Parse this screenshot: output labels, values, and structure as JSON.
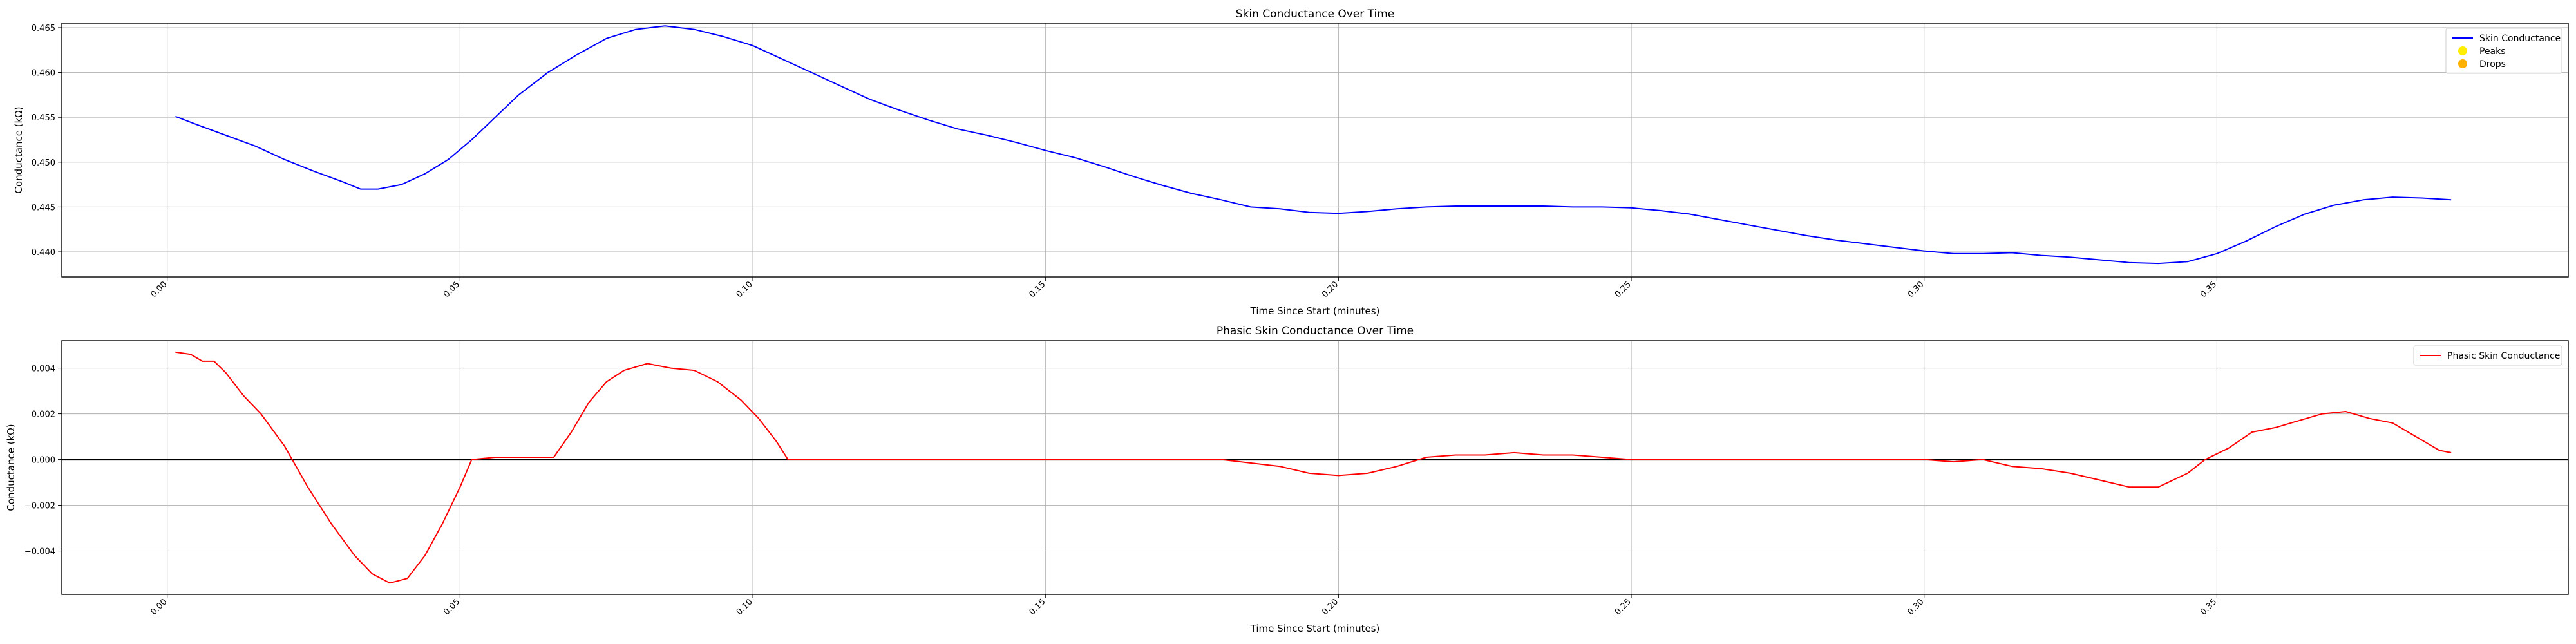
{
  "chart_data": [
    {
      "type": "line",
      "title": "Skin Conductance Over Time",
      "xlabel": "Time Since Start (minutes)",
      "ylabel": "Conductance (kΩ)",
      "xlim": [
        -0.018,
        0.41
      ],
      "ylim": [
        0.4372,
        0.4655
      ],
      "xticks": [
        0.0,
        0.05,
        0.1,
        0.15,
        0.2,
        0.25,
        0.3,
        0.35
      ],
      "xtick_labels": [
        "0.00",
        "0.05",
        "0.10",
        "0.15",
        "0.20",
        "0.25",
        "0.30",
        "0.35"
      ],
      "yticks": [
        0.44,
        0.445,
        0.45,
        0.455,
        0.46,
        0.465
      ],
      "ytick_labels": [
        "0.440",
        "0.445",
        "0.450",
        "0.455",
        "0.460",
        "0.465"
      ],
      "grid": true,
      "legend_position": "top-right",
      "legend": [
        {
          "label": "Skin Conductance",
          "marker": "line",
          "color": "#0000ff"
        },
        {
          "label": "Peaks",
          "marker": "dot",
          "color": "#ffee00"
        },
        {
          "label": "Drops",
          "marker": "dot",
          "color": "#ffb000"
        }
      ],
      "series": [
        {
          "name": "Skin Conductance",
          "color": "#0000ff",
          "x": [
            0.0014,
            0.005,
            0.01,
            0.015,
            0.02,
            0.025,
            0.03,
            0.033,
            0.036,
            0.04,
            0.044,
            0.048,
            0.052,
            0.056,
            0.06,
            0.065,
            0.07,
            0.075,
            0.08,
            0.085,
            0.09,
            0.095,
            0.1,
            0.105,
            0.11,
            0.115,
            0.12,
            0.125,
            0.13,
            0.135,
            0.14,
            0.145,
            0.15,
            0.155,
            0.16,
            0.165,
            0.17,
            0.175,
            0.18,
            0.185,
            0.19,
            0.195,
            0.2,
            0.205,
            0.21,
            0.215,
            0.22,
            0.225,
            0.23,
            0.235,
            0.24,
            0.245,
            0.25,
            0.255,
            0.26,
            0.265,
            0.27,
            0.275,
            0.28,
            0.285,
            0.29,
            0.295,
            0.3,
            0.305,
            0.31,
            0.315,
            0.32,
            0.325,
            0.33,
            0.335,
            0.34,
            0.345,
            0.35,
            0.355,
            0.36,
            0.365,
            0.37,
            0.375,
            0.38,
            0.385,
            0.39
          ],
          "y": [
            0.4551,
            0.4542,
            0.453,
            0.4518,
            0.4503,
            0.449,
            0.4478,
            0.447,
            0.447,
            0.4475,
            0.4487,
            0.4503,
            0.4525,
            0.455,
            0.4575,
            0.46,
            0.462,
            0.4638,
            0.4648,
            0.4652,
            0.4648,
            0.464,
            0.463,
            0.4615,
            0.46,
            0.4585,
            0.457,
            0.4558,
            0.4547,
            0.4537,
            0.453,
            0.4522,
            0.4513,
            0.4505,
            0.4495,
            0.4484,
            0.4474,
            0.4465,
            0.4458,
            0.445,
            0.4448,
            0.4444,
            0.4443,
            0.4445,
            0.4448,
            0.445,
            0.4451,
            0.4451,
            0.4451,
            0.4451,
            0.445,
            0.445,
            0.4449,
            0.4446,
            0.4442,
            0.4436,
            0.443,
            0.4424,
            0.4418,
            0.4413,
            0.4409,
            0.4405,
            0.4401,
            0.4398,
            0.4398,
            0.4399,
            0.4396,
            0.4394,
            0.4391,
            0.4388,
            0.4387,
            0.4389,
            0.4398,
            0.4412,
            0.4428,
            0.4442,
            0.4452,
            0.4458,
            0.4461,
            0.446,
            0.4458
          ]
        }
      ]
    },
    {
      "type": "line",
      "title": "Phasic Skin Conductance Over Time",
      "xlabel": "Time Since Start (minutes)",
      "ylabel": "Conductance (kΩ)",
      "xlim": [
        -0.018,
        0.41
      ],
      "ylim": [
        -0.0059,
        0.0052
      ],
      "xticks": [
        0.0,
        0.05,
        0.1,
        0.15,
        0.2,
        0.25,
        0.3,
        0.35
      ],
      "xtick_labels": [
        "0.00",
        "0.05",
        "0.10",
        "0.15",
        "0.20",
        "0.25",
        "0.30",
        "0.35"
      ],
      "yticks": [
        -0.004,
        -0.002,
        0.0,
        0.002,
        0.004
      ],
      "ytick_labels": [
        "−0.004",
        "−0.002",
        "0.000",
        "0.002",
        "0.004"
      ],
      "grid": true,
      "hline_y": 0,
      "legend_position": "top-right",
      "legend": [
        {
          "label": "Phasic Skin Conductance",
          "marker": "line",
          "color": "#ff0000"
        }
      ],
      "series": [
        {
          "name": "Phasic Skin Conductance",
          "color": "#ff0000",
          "x": [
            0.0014,
            0.004,
            0.006,
            0.008,
            0.01,
            0.013,
            0.016,
            0.02,
            0.024,
            0.028,
            0.032,
            0.035,
            0.038,
            0.041,
            0.044,
            0.047,
            0.05,
            0.052,
            0.056,
            0.06,
            0.066,
            0.069,
            0.072,
            0.075,
            0.078,
            0.082,
            0.086,
            0.09,
            0.094,
            0.098,
            0.101,
            0.104,
            0.106,
            0.11,
            0.14,
            0.18,
            0.19,
            0.195,
            0.2,
            0.205,
            0.21,
            0.215,
            0.22,
            0.225,
            0.23,
            0.235,
            0.24,
            0.245,
            0.25,
            0.26,
            0.3,
            0.305,
            0.31,
            0.315,
            0.32,
            0.325,
            0.33,
            0.335,
            0.34,
            0.345,
            0.348,
            0.352,
            0.356,
            0.36,
            0.364,
            0.368,
            0.372,
            0.376,
            0.38,
            0.384,
            0.388,
            0.39
          ],
          "y": [
            0.0047,
            0.0046,
            0.0043,
            0.0043,
            0.0038,
            0.0028,
            0.002,
            0.0006,
            -0.0012,
            -0.0028,
            -0.0042,
            -0.005,
            -0.0054,
            -0.0052,
            -0.0042,
            -0.0028,
            -0.0012,
            0.0,
            0.0001,
            0.0001,
            0.0001,
            0.0012,
            0.0025,
            0.0034,
            0.0039,
            0.0042,
            0.004,
            0.0039,
            0.0034,
            0.0026,
            0.0018,
            0.0008,
            0.0,
            0.0,
            0.0,
            0.0,
            -0.0003,
            -0.0006,
            -0.0007,
            -0.0006,
            -0.0003,
            0.0001,
            0.0002,
            0.0002,
            0.0003,
            0.0002,
            0.0002,
            0.0001,
            0.0,
            0.0,
            0.0,
            -0.0001,
            0.0,
            -0.0003,
            -0.0004,
            -0.0006,
            -0.0009,
            -0.0012,
            -0.0012,
            -0.0006,
            0.0,
            0.0005,
            0.0012,
            0.0014,
            0.0017,
            0.002,
            0.0021,
            0.0018,
            0.0016,
            0.001,
            0.0004,
            0.0003
          ]
        }
      ]
    }
  ]
}
